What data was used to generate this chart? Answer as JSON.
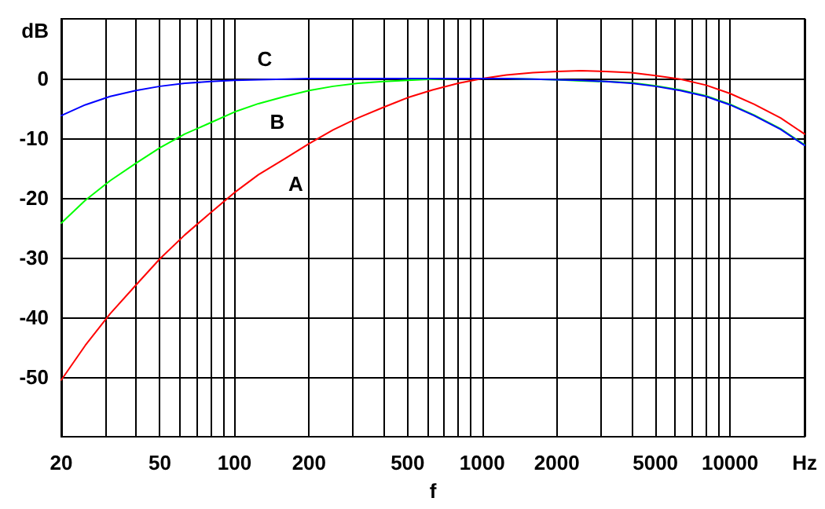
{
  "chart_data": {
    "type": "line",
    "xlabel": "f",
    "ylabel": "dB",
    "log": "x",
    "grid": true,
    "legend": false,
    "marker": "none",
    "line_style": "solid",
    "x": [
      20,
      25,
      31.5,
      40,
      50,
      63,
      80,
      100,
      125,
      160,
      200,
      250,
      315,
      400,
      500,
      630,
      800,
      1000,
      1250,
      1600,
      2000,
      2500,
      3150,
      4000,
      5000,
      6300,
      8000,
      10000,
      12500,
      16000,
      20000
    ],
    "series": [
      {
        "name": "A",
        "color": "#ff0000",
        "values": [
          -50.5,
          -44.7,
          -39.4,
          -34.6,
          -30.2,
          -26.2,
          -22.5,
          -19.1,
          -16.1,
          -13.4,
          -10.9,
          -8.6,
          -6.6,
          -4.8,
          -3.2,
          -1.9,
          -0.8,
          0,
          0.6,
          1.0,
          1.2,
          1.3,
          1.2,
          1.0,
          0.5,
          -0.1,
          -1.1,
          -2.5,
          -4.3,
          -6.6,
          -9.3
        ]
      },
      {
        "name": "B",
        "color": "#00ff00",
        "values": [
          -24.2,
          -20.4,
          -17.1,
          -14.2,
          -11.6,
          -9.3,
          -7.4,
          -5.6,
          -4.2,
          -3.0,
          -2.0,
          -1.3,
          -0.8,
          -0.5,
          -0.3,
          -0.1,
          0,
          0,
          0,
          -0.1,
          -0.2,
          -0.4,
          -0.5,
          -0.7,
          -1.2,
          -1.9,
          -2.9,
          -4.3,
          -6.1,
          -8.4,
          -11.1
        ]
      },
      {
        "name": "C",
        "color": "#0000ff",
        "values": [
          -6.2,
          -4.4,
          -3.0,
          -2.0,
          -1.3,
          -0.8,
          -0.5,
          -0.3,
          -0.2,
          -0.1,
          0,
          0,
          0,
          0,
          0,
          0,
          0,
          0,
          0,
          -0.1,
          -0.2,
          -0.3,
          -0.5,
          -0.8,
          -1.3,
          -2.0,
          -3.0,
          -4.4,
          -6.2,
          -8.5,
          -11.2
        ]
      }
    ],
    "xlim": [
      20,
      20000
    ],
    "xticks": [
      20,
      {
        "value": 30,
        "label": null
      },
      {
        "value": 40,
        "label": null
      },
      50,
      {
        "value": 60,
        "label": null
      },
      {
        "value": 70,
        "label": null
      },
      {
        "value": 80,
        "label": null
      },
      {
        "value": 90,
        "label": null
      },
      100,
      200,
      {
        "value": 300,
        "label": null
      },
      {
        "value": 400,
        "label": null
      },
      500,
      {
        "value": 600,
        "label": null
      },
      {
        "value": 700,
        "label": null
      },
      {
        "value": 800,
        "label": null
      },
      {
        "value": 900,
        "label": null
      },
      1000,
      2000,
      {
        "value": 3000,
        "label": null
      },
      {
        "value": 4000,
        "label": null
      },
      5000,
      {
        "value": 6000,
        "label": null
      },
      {
        "value": 7000,
        "label": null
      },
      {
        "value": 8000,
        "label": null
      },
      {
        "value": 9000,
        "label": null
      },
      10000,
      {
        "value": 20000,
        "label": "Hz"
      }
    ],
    "ylim": [
      -60,
      10
    ],
    "yticks": [
      -50,
      -40,
      -30,
      -20,
      -10,
      0
    ]
  }
}
